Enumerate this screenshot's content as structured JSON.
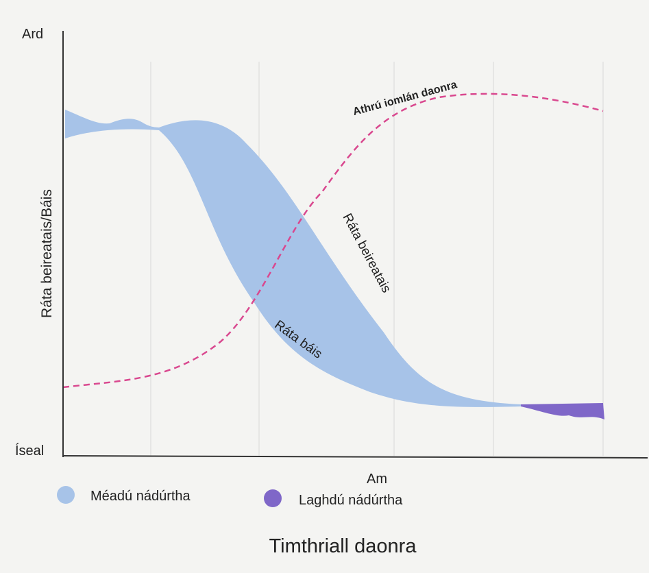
{
  "title": "Timthriall daonra",
  "axes": {
    "y_high": "Ard",
    "y_low": "Íseal",
    "y_label": "Ráta beireatais/Báis",
    "x_label": "Am"
  },
  "curve_labels": {
    "total_change": "Athrú iomlán daonra",
    "birth_rate": "Ráta beireatais",
    "death_rate": "Ráta báis"
  },
  "legend": [
    {
      "label": "Méadú nádúrtha"
    },
    {
      "label": "Laghdú nádúrtha"
    }
  ]
}
